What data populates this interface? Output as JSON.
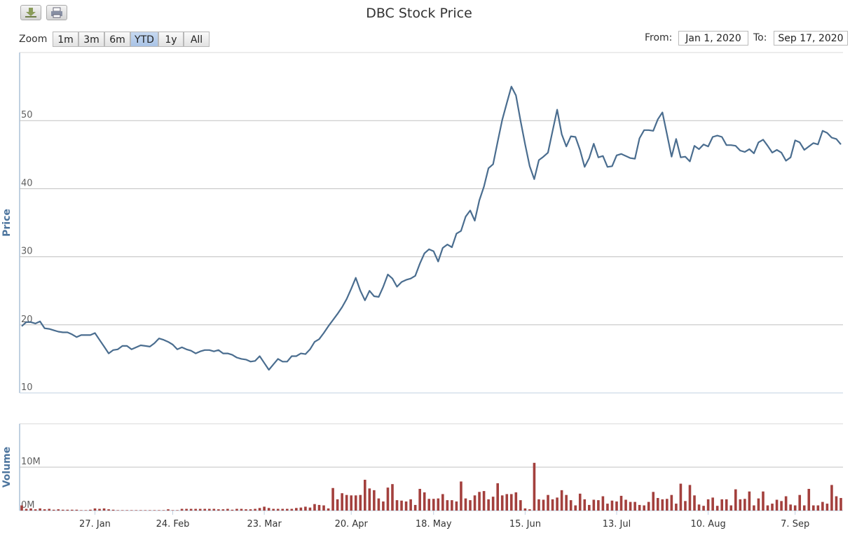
{
  "toolbar": {
    "zoom_label": "Zoom",
    "buttons": [
      {
        "label": "1m"
      },
      {
        "label": "3m"
      },
      {
        "label": "6m"
      },
      {
        "label": "YTD",
        "selected": true
      },
      {
        "label": "1y"
      },
      {
        "label": "All"
      }
    ],
    "from_label": "From:",
    "from_value": "Jan 1, 2020",
    "to_label": "To:",
    "to_value": "Sep 17, 2020"
  },
  "chart_data": [
    {
      "type": "line",
      "title": "DBC Stock Price",
      "y_label": "Price",
      "color": "#4a6d8f",
      "ylim": [
        10,
        60
      ],
      "yticks": [
        10,
        20,
        30,
        40,
        50
      ],
      "grid": true,
      "values": [
        19.8,
        20.4,
        20.4,
        20.2,
        20.5,
        19.5,
        19.4,
        19.2,
        19.0,
        18.9,
        18.9,
        18.6,
        18.2,
        18.5,
        18.5,
        18.5,
        18.8,
        17.8,
        16.8,
        15.8,
        16.3,
        16.4,
        16.9,
        16.9,
        16.4,
        16.7,
        17.0,
        16.9,
        16.8,
        17.3,
        18.0,
        17.8,
        17.5,
        17.1,
        16.4,
        16.7,
        16.4,
        16.2,
        15.8,
        16.1,
        16.3,
        16.3,
        16.1,
        16.3,
        15.8,
        15.8,
        15.6,
        15.2,
        15.0,
        14.9,
        14.6,
        14.7,
        15.4,
        14.4,
        13.4,
        14.2,
        15.0,
        14.6,
        14.6,
        15.4,
        15.4,
        15.8,
        15.7,
        16.4,
        17.5,
        17.9,
        18.8,
        19.8,
        20.7,
        21.6,
        22.6,
        23.8,
        25.3,
        26.9,
        25.0,
        23.6,
        25.0,
        24.2,
        24.1,
        25.6,
        27.4,
        26.8,
        25.6,
        26.3,
        26.6,
        26.8,
        27.2,
        29.0,
        30.5,
        31.1,
        30.8,
        29.3,
        31.3,
        31.8,
        31.4,
        33.4,
        33.8,
        35.9,
        36.8,
        35.3,
        38.3,
        40.3,
        43.0,
        43.6,
        46.9,
        50.1,
        52.6,
        55.0,
        53.7,
        50.0,
        46.5,
        43.3,
        41.4,
        44.2,
        44.7,
        45.3,
        48.5,
        51.6,
        48.0,
        46.2,
        47.7,
        47.6,
        45.7,
        43.2,
        44.5,
        46.6,
        44.6,
        44.8,
        43.2,
        43.3,
        44.9,
        45.1,
        44.8,
        44.5,
        44.4,
        47.4,
        48.6,
        48.6,
        48.5,
        50.2,
        51.2,
        48.0,
        44.7,
        47.3,
        44.6,
        44.7,
        44.0,
        46.3,
        45.8,
        46.5,
        46.2,
        47.6,
        47.8,
        47.6,
        46.4,
        46.4,
        46.3,
        45.6,
        45.4,
        45.8,
        45.2,
        46.8,
        47.2,
        46.3,
        45.3,
        45.7,
        45.3,
        44.1,
        44.6,
        47.1,
        46.8,
        45.7,
        46.2,
        46.7,
        46.5,
        48.5,
        48.2,
        47.5,
        47.3,
        46.5
      ]
    },
    {
      "type": "bar",
      "y_label": "Volume",
      "color": "#a3403d",
      "ylim": [
        0,
        20
      ],
      "yticks": [
        {
          "value": 0,
          "label": "0M"
        },
        {
          "value": 10,
          "label": "10M"
        }
      ],
      "grid": true,
      "categories": [
        null,
        null,
        null,
        null,
        null,
        null,
        null,
        null,
        null,
        null,
        null,
        null,
        null,
        null,
        null,
        null,
        "27. Jan",
        null,
        null,
        null,
        null,
        null,
        null,
        null,
        null,
        null,
        null,
        null,
        null,
        null,
        null,
        null,
        null,
        "24. Feb",
        null,
        null,
        null,
        null,
        null,
        null,
        null,
        null,
        null,
        null,
        null,
        null,
        null,
        null,
        null,
        null,
        null,
        null,
        null,
        "23. Mar",
        null,
        null,
        null,
        null,
        null,
        null,
        null,
        null,
        null,
        null,
        null,
        null,
        null,
        null,
        null,
        null,
        null,
        null,
        "20. Apr",
        null,
        null,
        null,
        null,
        null,
        null,
        null,
        null,
        null,
        null,
        null,
        null,
        null,
        null,
        null,
        null,
        null,
        "18. May",
        null,
        null,
        null,
        null,
        null,
        null,
        null,
        null,
        null,
        null,
        null,
        null,
        null,
        null,
        null,
        null,
        null,
        null,
        null,
        "15. Jun",
        null,
        null,
        null,
        null,
        null,
        null,
        null,
        null,
        null,
        null,
        null,
        null,
        null,
        null,
        null,
        null,
        null,
        null,
        null,
        "13. Jul",
        null,
        null,
        null,
        null,
        null,
        null,
        null,
        null,
        null,
        null,
        null,
        null,
        null,
        null,
        null,
        null,
        null,
        null,
        null,
        "10. Aug",
        null,
        null,
        null,
        null,
        null,
        null,
        null,
        null,
        null,
        null,
        null,
        null,
        null,
        null,
        null,
        null,
        null,
        null,
        "7. Sep",
        null,
        null,
        null,
        null,
        null,
        null,
        null,
        null,
        null,
        null
      ],
      "values": [
        1.2,
        0.4,
        0.5,
        0.3,
        0.5,
        0.3,
        0.4,
        0.2,
        0.3,
        0.2,
        0.2,
        0.2,
        0.2,
        0.1,
        0.1,
        0.2,
        0.5,
        0.4,
        0.5,
        0.3,
        0.2,
        0.1,
        0.1,
        0.1,
        0.1,
        0.1,
        0.1,
        0.1,
        0.1,
        0.1,
        0.1,
        0.1,
        0.3,
        0.1,
        0.1,
        0.4,
        0.4,
        0.4,
        0.4,
        0.4,
        0.4,
        0.4,
        0.4,
        0.3,
        0.3,
        0.4,
        0.2,
        0.4,
        0.4,
        0.3,
        0.3,
        0.4,
        0.6,
        0.9,
        0.6,
        0.4,
        0.4,
        0.4,
        0.4,
        0.4,
        0.6,
        0.7,
        0.9,
        0.7,
        1.5,
        1.3,
        1.2,
        0.5,
        5.2,
        2.6,
        4.0,
        3.6,
        3.5,
        3.5,
        3.6,
        7.1,
        5.1,
        4.7,
        2.8,
        2.1,
        5.3,
        6.1,
        2.4,
        2.3,
        2.1,
        2.6,
        1.3,
        5.0,
        4.2,
        2.7,
        2.7,
        2.8,
        3.8,
        2.4,
        2.4,
        2.1,
        6.7,
        2.8,
        2.4,
        3.5,
        4.3,
        4.5,
        2.6,
        3.2,
        6.3,
        3.5,
        3.8,
        3.8,
        4.2,
        2.4,
        0.5,
        0.3,
        11.0,
        2.6,
        2.5,
        3.6,
        2.6,
        3.0,
        4.7,
        3.6,
        2.4,
        1.2,
        3.9,
        2.6,
        1.3,
        2.5,
        2.4,
        3.3,
        1.6,
        2.3,
        2.1,
        3.4,
        2.5,
        2.0,
        2.0,
        1.3,
        1.2,
        2.0,
        4.3,
        2.9,
        2.6,
        2.7,
        3.6,
        1.6,
        6.2,
        2.2,
        5.9,
        3.5,
        1.4,
        1.1,
        2.6,
        3.0,
        1.1,
        2.6,
        2.6,
        1.2,
        4.9,
        2.6,
        2.7,
        4.4,
        1.2,
        2.8,
        4.4,
        1.2,
        1.6,
        2.5,
        2.2,
        3.3,
        1.4,
        1.2,
        3.6,
        1.2,
        5.0,
        1.2,
        1.2,
        2.0,
        1.6,
        5.9,
        3.3,
        2.9
      ]
    }
  ]
}
